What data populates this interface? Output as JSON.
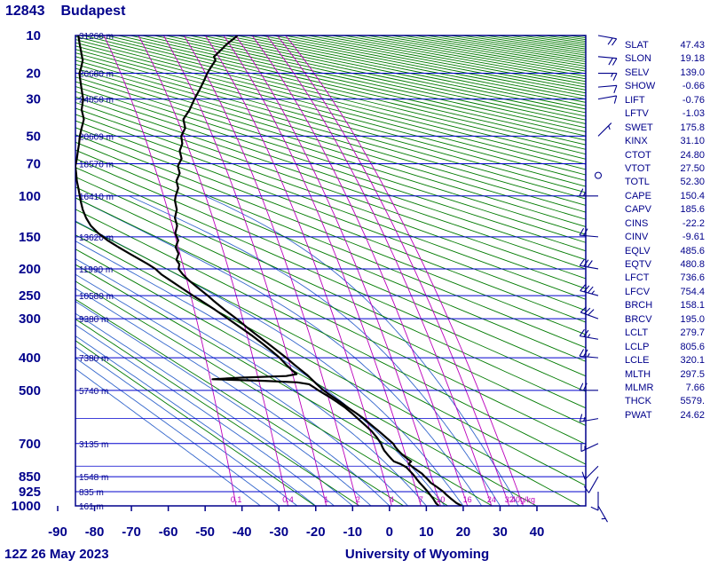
{
  "title": {
    "station": "12843",
    "city": "Budapest"
  },
  "footer": {
    "left": "12Z 26 May 2023",
    "center": "University of Wyoming"
  },
  "colors": {
    "text_navy": "#00008b",
    "grid_blue": "#0000cd",
    "dry_adiabat_green": "#007a00",
    "moist_adiabat_blue": "#3366cc",
    "mixing_ratio_magenta": "#bb00bb",
    "profile_black": "#000000",
    "background": "#ffffff"
  },
  "axes": {
    "pressure_levels": [
      {
        "p": 10,
        "label": "10",
        "height": "31260 m"
      },
      {
        "p": 20,
        "label": "20",
        "height": "26680 m"
      },
      {
        "p": 30,
        "label": "30",
        "height": "24050 m"
      },
      {
        "p": 50,
        "label": "50",
        "height": "20609 m"
      },
      {
        "p": 70,
        "label": "70",
        "height": "18570 m"
      },
      {
        "p": 100,
        "label": "100",
        "height": "16410 m"
      },
      {
        "p": 150,
        "label": "150",
        "height": "13620 m"
      },
      {
        "p": 200,
        "label": "200",
        "height": "11990 m"
      },
      {
        "p": 250,
        "label": "250",
        "height": "10580 m"
      },
      {
        "p": 300,
        "label": "300",
        "height": "9380 m"
      },
      {
        "p": 400,
        "label": "400",
        "height": "7380 m"
      },
      {
        "p": 500,
        "label": "500",
        "height": "5740 m"
      },
      {
        "p": 700,
        "label": "700",
        "height": "3135 m"
      },
      {
        "p": 850,
        "label": "850",
        "height": "1548 m"
      },
      {
        "p": 925,
        "label": "925",
        "height": "835 m"
      },
      {
        "p": 1000,
        "label": "1000",
        "height": "161 m"
      }
    ],
    "minor_isobars": [
      600,
      800
    ],
    "temp_ticks": [
      -90,
      -80,
      -70,
      -60,
      -50,
      -40,
      -30,
      -20,
      -10,
      0,
      10,
      20,
      30,
      40
    ]
  },
  "mixing_labels": [
    {
      "w": 0.1,
      "label": "0.1"
    },
    {
      "w": 0.4,
      "label": "0.4"
    },
    {
      "w": 1,
      "label": "1"
    },
    {
      "w": 2,
      "label": "2"
    },
    {
      "w": 4,
      "label": "4"
    },
    {
      "w": 7,
      "label": "7"
    },
    {
      "w": 10,
      "label": "10"
    },
    {
      "w": 16,
      "label": "16"
    },
    {
      "w": 24,
      "label": "24"
    },
    {
      "w": 32,
      "label": "32"
    },
    {
      "w": 40,
      "label": "40g/kg"
    }
  ],
  "indices": [
    {
      "label": "SLAT",
      "value": "47.43"
    },
    {
      "label": "SLON",
      "value": "19.18"
    },
    {
      "label": "SELV",
      "value": "139.0"
    },
    {
      "label": "SHOW",
      "value": "-0.66"
    },
    {
      "label": "LIFT",
      "value": "-0.76"
    },
    {
      "label": "LFTV",
      "value": "-1.03"
    },
    {
      "label": "SWET",
      "value": "175.8"
    },
    {
      "label": "KINX",
      "value": "31.10"
    },
    {
      "label": "CTOT",
      "value": "24.80"
    },
    {
      "label": "VTOT",
      "value": "27.50"
    },
    {
      "label": "TOTL",
      "value": "52.30"
    },
    {
      "label": "CAPE",
      "value": "150.4"
    },
    {
      "label": "CAPV",
      "value": "185.6"
    },
    {
      "label": "CINS",
      "value": "-22.2"
    },
    {
      "label": "CINV",
      "value": "-9.61"
    },
    {
      "label": "EQLV",
      "value": "485.6"
    },
    {
      "label": "EQTV",
      "value": "480.8"
    },
    {
      "label": "LFCT",
      "value": "736.6"
    },
    {
      "label": "LFCV",
      "value": "754.4"
    },
    {
      "label": "BRCH",
      "value": "158.1"
    },
    {
      "label": "BRCV",
      "value": "195.0"
    },
    {
      "label": "LCLT",
      "value": "279.7"
    },
    {
      "label": "LCLP",
      "value": "805.6"
    },
    {
      "label": "LCLE",
      "value": "320.1"
    },
    {
      "label": "MLTH",
      "value": "297.5"
    },
    {
      "label": "MLMR",
      "value": "7.66"
    },
    {
      "label": "THCK",
      "value": "5579."
    },
    {
      "label": "PWAT",
      "value": "24.62"
    }
  ],
  "winds": [
    {
      "p": 1000,
      "dir": 150,
      "spd": 5
    },
    {
      "p": 925,
      "dir": 180,
      "spd": 10
    },
    {
      "p": 850,
      "dir": 210,
      "spd": 10
    },
    {
      "p": 800,
      "dir": 225,
      "spd": 10
    },
    {
      "p": 700,
      "dir": 245,
      "spd": 15
    },
    {
      "p": 600,
      "dir": 260,
      "spd": 15
    },
    {
      "p": 500,
      "dir": 270,
      "spd": 20
    },
    {
      "p": 400,
      "dir": 275,
      "spd": 25
    },
    {
      "p": 350,
      "dir": 280,
      "spd": 25
    },
    {
      "p": 300,
      "dir": 290,
      "spd": 30
    },
    {
      "p": 250,
      "dir": 285,
      "spd": 35
    },
    {
      "p": 200,
      "dir": 280,
      "spd": 30
    },
    {
      "p": 150,
      "dir": 275,
      "spd": 20
    },
    {
      "p": 100,
      "dir": 270,
      "spd": 15
    },
    {
      "p": 80,
      "dir": 0,
      "spd": 0
    },
    {
      "p": 50,
      "dir": 45,
      "spd": 5
    },
    {
      "p": 30,
      "dir": 80,
      "spd": 10
    },
    {
      "p": 25,
      "dir": 85,
      "spd": 12
    },
    {
      "p": 20,
      "dir": 90,
      "spd": 15
    },
    {
      "p": 15,
      "dir": 95,
      "spd": 18
    },
    {
      "p": 10,
      "dir": 100,
      "spd": 20
    }
  ],
  "chart_data": {
    "type": "line",
    "title": "12843 Budapest 12Z 26 May 2023",
    "xlabel": "Temperature (C)",
    "ylabel": "Pressure (hPa)",
    "xlim": [
      -90,
      40
    ],
    "pressure_range": [
      1000,
      10
    ],
    "grid": true,
    "series": [
      {
        "name": "temperature",
        "points": [
          [
            1000,
            19.6
          ],
          [
            985,
            18.2
          ],
          [
            960,
            16.6
          ],
          [
            940,
            15.4
          ],
          [
            925,
            14.6
          ],
          [
            900,
            12.8
          ],
          [
            880,
            11.2
          ],
          [
            860,
            10.2
          ],
          [
            850,
            9.6
          ],
          [
            835,
            8.8
          ],
          [
            820,
            7.6
          ],
          [
            805,
            6.4
          ],
          [
            790,
            5.2
          ],
          [
            778,
            5.9
          ],
          [
            768,
            5.0
          ],
          [
            750,
            3.6
          ],
          [
            730,
            2.4
          ],
          [
            715,
            1.6
          ],
          [
            700,
            1.0
          ],
          [
            675,
            -0.9
          ],
          [
            650,
            -2.8
          ],
          [
            625,
            -4.9
          ],
          [
            600,
            -7.0
          ],
          [
            580,
            -9.0
          ],
          [
            560,
            -11.2
          ],
          [
            540,
            -13.3
          ],
          [
            520,
            -15.6
          ],
          [
            500,
            -17.9
          ],
          [
            480,
            -19.7
          ],
          [
            460,
            -21.5
          ],
          [
            450,
            -22.4
          ],
          [
            435,
            -24.1
          ],
          [
            420,
            -25.8
          ],
          [
            400,
            -28.0
          ],
          [
            380,
            -30.5
          ],
          [
            360,
            -33.1
          ],
          [
            340,
            -35.9
          ],
          [
            320,
            -38.7
          ],
          [
            300,
            -41.5
          ],
          [
            280,
            -44.7
          ],
          [
            260,
            -47.8
          ],
          [
            250,
            -49.3
          ],
          [
            235,
            -51.9
          ],
          [
            220,
            -54.5
          ],
          [
            210,
            -56.0
          ],
          [
            200,
            -57.2
          ],
          [
            192,
            -57.0
          ],
          [
            185,
            -57.8
          ],
          [
            175,
            -57.2
          ],
          [
            165,
            -58.0
          ],
          [
            155,
            -57.3
          ],
          [
            145,
            -58.1
          ],
          [
            135,
            -57.6
          ],
          [
            125,
            -58.2
          ],
          [
            115,
            -57.7
          ],
          [
            105,
            -58.2
          ],
          [
            100,
            -58.0
          ],
          [
            92,
            -57.3
          ],
          [
            85,
            -57.8
          ],
          [
            78,
            -56.9
          ],
          [
            72,
            -57.4
          ],
          [
            66,
            -56.4
          ],
          [
            60,
            -56.9
          ],
          [
            55,
            -56.2
          ],
          [
            50,
            -56.5
          ],
          [
            45,
            -55.4
          ],
          [
            40,
            -55.9
          ],
          [
            35,
            -54.2
          ],
          [
            30,
            -52.9
          ],
          [
            26,
            -51.5
          ],
          [
            22,
            -50.1
          ],
          [
            20,
            -49.4
          ],
          [
            18,
            -48.4
          ],
          [
            16,
            -47.2
          ],
          [
            15,
            -47.6
          ],
          [
            13,
            -45.4
          ],
          [
            12,
            -44.3
          ],
          [
            11,
            -42.8
          ],
          [
            10,
            -41.2
          ]
        ]
      },
      {
        "name": "dewpoint",
        "points": [
          [
            1000,
            13.4
          ],
          [
            985,
            12.6
          ],
          [
            960,
            11.8
          ],
          [
            940,
            11.0
          ],
          [
            925,
            10.4
          ],
          [
            900,
            9.2
          ],
          [
            880,
            8.2
          ],
          [
            860,
            7.3
          ],
          [
            850,
            6.9
          ],
          [
            835,
            6.2
          ],
          [
            820,
            5.4
          ],
          [
            805,
            4.6
          ],
          [
            790,
            3.0
          ],
          [
            778,
            1.2
          ],
          [
            768,
            0.6
          ],
          [
            750,
            -0.4
          ],
          [
            730,
            -1.4
          ],
          [
            715,
            -1.9
          ],
          [
            700,
            -2.3
          ],
          [
            675,
            -3.4
          ],
          [
            650,
            -4.8
          ],
          [
            625,
            -6.6
          ],
          [
            600,
            -8.6
          ],
          [
            580,
            -10.2
          ],
          [
            560,
            -12.0
          ],
          [
            540,
            -14.2
          ],
          [
            520,
            -16.6
          ],
          [
            500,
            -19.3
          ],
          [
            490,
            -20.5
          ],
          [
            480,
            -21.8
          ],
          [
            474,
            -25.0
          ],
          [
            469,
            -34.0
          ],
          [
            464,
            -48.0
          ],
          [
            459,
            -40.0
          ],
          [
            454,
            -28.0
          ],
          [
            448,
            -25.2
          ],
          [
            435,
            -26.6
          ],
          [
            420,
            -28.0
          ],
          [
            400,
            -29.8
          ],
          [
            380,
            -32.1
          ],
          [
            360,
            -34.6
          ],
          [
            340,
            -37.4
          ],
          [
            320,
            -40.5
          ],
          [
            300,
            -43.8
          ],
          [
            280,
            -47.3
          ],
          [
            260,
            -51.2
          ],
          [
            250,
            -53.3
          ],
          [
            235,
            -56.4
          ],
          [
            220,
            -59.6
          ],
          [
            210,
            -61.8
          ],
          [
            200,
            -63.5
          ],
          [
            192,
            -65.5
          ],
          [
            185,
            -67.5
          ],
          [
            175,
            -70.5
          ],
          [
            165,
            -73.5
          ],
          [
            155,
            -76.5
          ],
          [
            145,
            -79.0
          ],
          [
            135,
            -81.0
          ],
          [
            125,
            -82.3
          ],
          [
            115,
            -83.2
          ],
          [
            105,
            -83.8
          ],
          [
            100,
            -84.0
          ],
          [
            92,
            -84.4
          ],
          [
            85,
            -84.8
          ],
          [
            78,
            -85.0
          ],
          [
            72,
            -85.2
          ],
          [
            66,
            -84.8
          ],
          [
            60,
            -84.5
          ],
          [
            55,
            -84.2
          ],
          [
            50,
            -84.0
          ],
          [
            45,
            -83.5
          ],
          [
            40,
            -82.9
          ],
          [
            35,
            -83.5
          ],
          [
            30,
            -83.1
          ],
          [
            26,
            -83.5
          ],
          [
            22,
            -83.9
          ],
          [
            20,
            -84.1
          ],
          [
            18,
            -83.6
          ],
          [
            16,
            -83.2
          ],
          [
            15,
            -83.4
          ],
          [
            13,
            -83.8
          ],
          [
            12,
            -84.0
          ],
          [
            11,
            -84.2
          ],
          [
            10,
            -84.4
          ]
        ]
      }
    ]
  }
}
